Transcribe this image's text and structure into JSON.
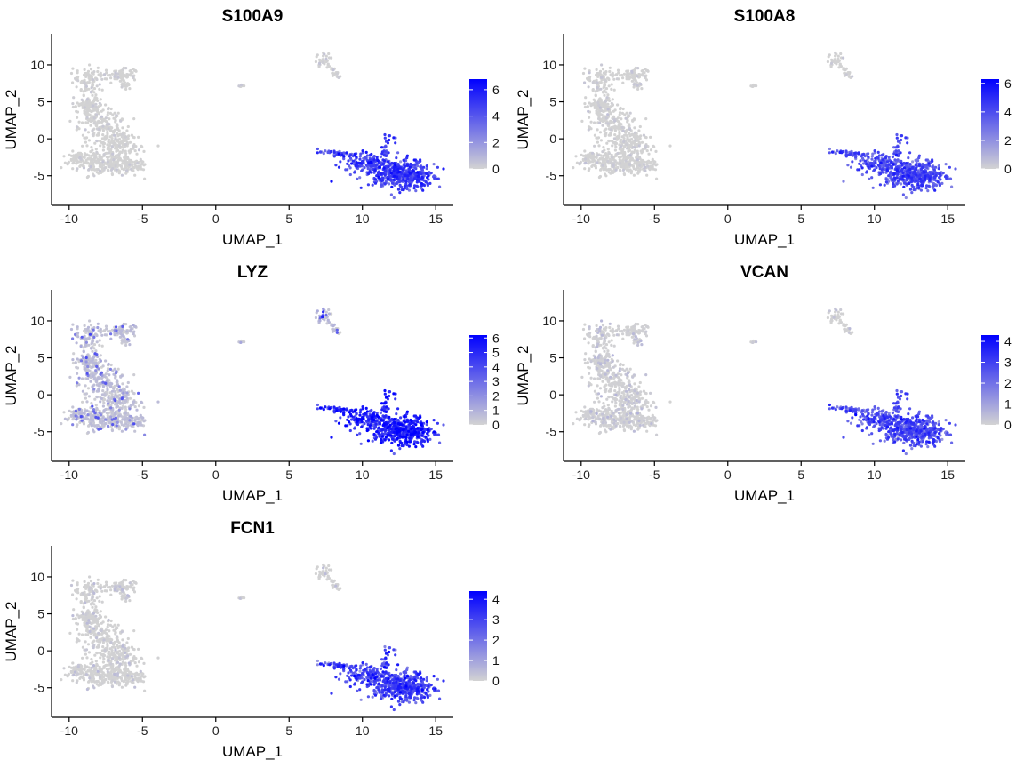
{
  "chart_data": [
    {
      "type": "scatter",
      "title": "S100A9",
      "xlabel": "UMAP_1",
      "ylabel": "UMAP_2",
      "xlim": [
        -11.2,
        16.2
      ],
      "ylim": [
        -9.0,
        13.0
      ],
      "x_ticks": [
        -10,
        -5,
        0,
        5,
        10,
        15
      ],
      "x_tick_labels": [
        "-10",
        "-5",
        "0",
        "5",
        "10",
        "15"
      ],
      "y_ticks": [
        -5,
        0,
        5,
        10
      ],
      "y_tick_labels": [
        "-5",
        "0",
        "5",
        "10"
      ],
      "colorbar": {
        "min": 0,
        "max": 6.8,
        "ticks": [
          0,
          2,
          4,
          6
        ],
        "tick_labels": [
          "0",
          "2",
          "4",
          "6"
        ],
        "low_color": "#d3d3d3",
        "high_color": "#0000ff"
      },
      "cluster_expression": {
        "left_group": 0.02,
        "small_group": 0.05,
        "top_group": 0.06,
        "right_group": 5.2
      }
    },
    {
      "type": "scatter",
      "title": "S100A8",
      "xlabel": "UMAP_1",
      "ylabel": "UMAP_2",
      "xlim": [
        -11.2,
        16.2
      ],
      "ylim": [
        -9.0,
        13.0
      ],
      "x_ticks": [
        -10,
        -5,
        0,
        5,
        10,
        15
      ],
      "x_tick_labels": [
        "-10",
        "-5",
        "0",
        "5",
        "10",
        "15"
      ],
      "y_ticks": [
        -5,
        0,
        5,
        10
      ],
      "y_tick_labels": [
        "-5",
        "0",
        "5",
        "10"
      ],
      "colorbar": {
        "min": 0,
        "max": 6.3,
        "ticks": [
          0,
          2,
          4,
          6
        ],
        "tick_labels": [
          "0",
          "2",
          "4",
          "6"
        ],
        "low_color": "#d3d3d3",
        "high_color": "#0000ff"
      },
      "cluster_expression": {
        "left_group": 0.04,
        "small_group": 0.05,
        "top_group": 0.05,
        "right_group": 4.3
      }
    },
    {
      "type": "scatter",
      "title": "LYZ",
      "xlabel": "UMAP_1",
      "ylabel": "UMAP_2",
      "xlim": [
        -11.2,
        16.2
      ],
      "ylim": [
        -9.0,
        13.0
      ],
      "x_ticks": [
        -10,
        -5,
        0,
        5,
        10,
        15
      ],
      "x_tick_labels": [
        "-10",
        "-5",
        "0",
        "5",
        "10",
        "15"
      ],
      "y_ticks": [
        -5,
        0,
        5,
        10
      ],
      "y_tick_labels": [
        "-5",
        "0",
        "5",
        "10"
      ],
      "colorbar": {
        "min": 0,
        "max": 6.2,
        "ticks": [
          0,
          1,
          2,
          3,
          4,
          5,
          6
        ],
        "tick_labels": [
          "0",
          "1",
          "2",
          "3",
          "4",
          "5",
          "6"
        ],
        "low_color": "#d3d3d3",
        "high_color": "#0000ff"
      },
      "cluster_expression": {
        "left_group": 0.8,
        "small_group": 0.3,
        "top_group": 1.2,
        "right_group": 5.6
      }
    },
    {
      "type": "scatter",
      "title": "VCAN",
      "xlabel": "UMAP_1",
      "ylabel": "UMAP_2",
      "xlim": [
        -11.2,
        16.2
      ],
      "ylim": [
        -9.0,
        13.0
      ],
      "x_ticks": [
        -10,
        -5,
        0,
        5,
        10,
        15
      ],
      "x_tick_labels": [
        "-10",
        "-5",
        "0",
        "5",
        "10",
        "15"
      ],
      "y_ticks": [
        -5,
        0,
        5,
        10
      ],
      "y_tick_labels": [
        "-5",
        "0",
        "5",
        "10"
      ],
      "colorbar": {
        "min": 0,
        "max": 4.3,
        "ticks": [
          0,
          1,
          2,
          3,
          4
        ],
        "tick_labels": [
          "0",
          "1",
          "2",
          "3",
          "4"
        ],
        "low_color": "#d3d3d3",
        "high_color": "#0000ff"
      },
      "cluster_expression": {
        "left_group": 0.08,
        "small_group": 0.05,
        "top_group": 0.05,
        "right_group": 2.9
      }
    },
    {
      "type": "scatter",
      "title": "FCN1",
      "xlabel": "UMAP_1",
      "ylabel": "UMAP_2",
      "xlim": [
        -11.2,
        16.2
      ],
      "ylim": [
        -9.0,
        13.0
      ],
      "x_ticks": [
        -10,
        -5,
        0,
        5,
        10,
        15
      ],
      "x_tick_labels": [
        "-10",
        "-5",
        "0",
        "5",
        "10",
        "15"
      ],
      "y_ticks": [
        -5,
        0,
        5,
        10
      ],
      "y_tick_labels": [
        "-5",
        "0",
        "5",
        "10"
      ],
      "colorbar": {
        "min": 0,
        "max": 4.4,
        "ticks": [
          0,
          1,
          2,
          3,
          4
        ],
        "tick_labels": [
          "0",
          "1",
          "2",
          "3",
          "4"
        ],
        "low_color": "#d3d3d3",
        "high_color": "#0000ff"
      },
      "cluster_expression": {
        "left_group": 0.05,
        "small_group": 0.05,
        "top_group": 0.05,
        "right_group": 3.2
      }
    }
  ]
}
